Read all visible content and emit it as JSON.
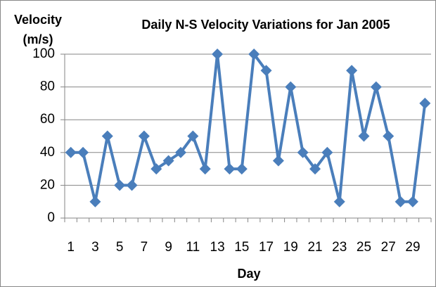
{
  "chart_data": {
    "type": "line",
    "title": "Daily N-S Velocity Variations for Jan 2005",
    "ylabel_lines": [
      "Velocity",
      "(m/s)"
    ],
    "xlabel": "Day",
    "categories": [
      1,
      null,
      3,
      null,
      5,
      null,
      7,
      null,
      9,
      null,
      11,
      null,
      13,
      null,
      15,
      null,
      17,
      null,
      19,
      null,
      21,
      null,
      23,
      null,
      25,
      null,
      27,
      null,
      29,
      null
    ],
    "series": [
      {
        "name": "Velocity",
        "color": "#4a7ebb",
        "values": [
          40,
          40,
          10,
          50,
          20,
          20,
          50,
          30,
          35,
          40,
          50,
          30,
          100,
          30,
          30,
          100,
          90,
          35,
          80,
          40,
          30,
          40,
          10,
          90,
          50,
          80,
          50,
          10,
          10,
          70
        ]
      }
    ],
    "ylim": [
      0,
      100
    ],
    "yticks": [
      0,
      20,
      40,
      60,
      80,
      100
    ],
    "grid": true
  }
}
